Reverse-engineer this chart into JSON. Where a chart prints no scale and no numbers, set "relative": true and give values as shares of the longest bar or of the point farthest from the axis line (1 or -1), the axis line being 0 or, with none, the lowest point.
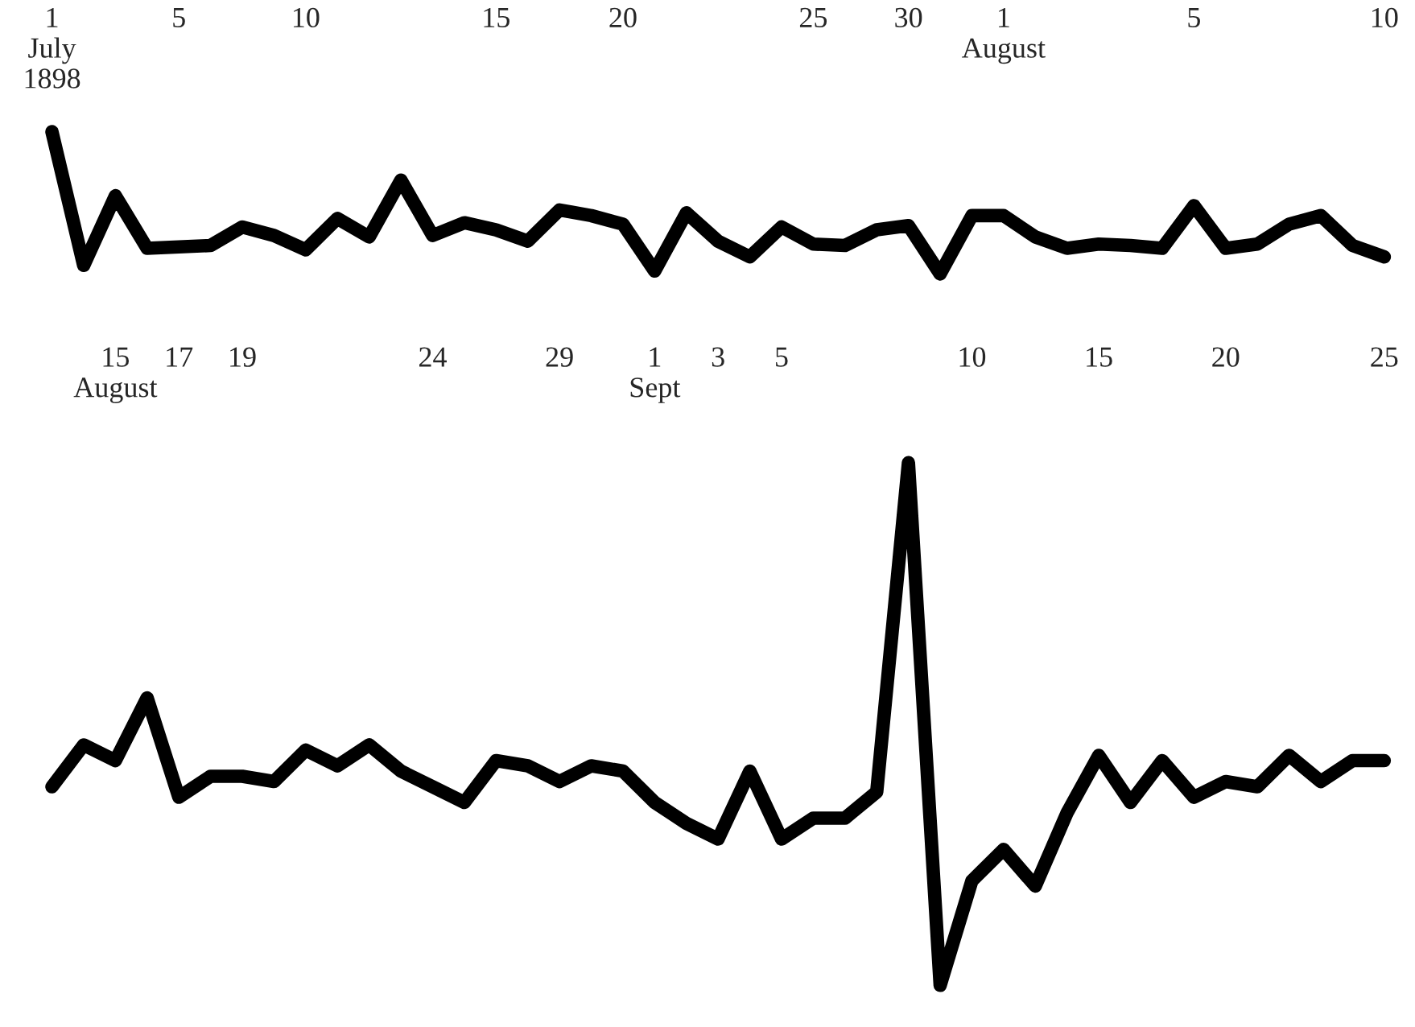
{
  "chart_data": [
    {
      "type": "line",
      "relative": true,
      "grid": false,
      "marker": "none",
      "line_style": "solid",
      "categories": [
        "1\nJuly\n1898",
        null,
        null,
        null,
        "5",
        null,
        null,
        null,
        "10",
        null,
        null,
        null,
        null,
        null,
        "15",
        null,
        null,
        null,
        "20",
        null,
        null,
        null,
        null,
        null,
        "25",
        null,
        null,
        "30",
        null,
        null,
        "1\nAugust",
        null,
        null,
        null,
        null,
        null,
        "5",
        null,
        null,
        null,
        null,
        null,
        "10"
      ],
      "series": [
        {
          "color": "#000000",
          "values": [
            1.0,
            0.06,
            0.55,
            0.18,
            0.19,
            0.2,
            0.33,
            0.27,
            0.17,
            0.39,
            0.26,
            0.66,
            0.27,
            0.36,
            0.31,
            0.23,
            0.45,
            0.41,
            0.35,
            0.02,
            0.43,
            0.23,
            0.12,
            0.33,
            0.21,
            0.2,
            0.31,
            0.34,
            0.0,
            0.41,
            0.41,
            0.26,
            0.18,
            0.21,
            0.2,
            0.18,
            0.48,
            0.18,
            0.21,
            0.35,
            0.41,
            0.2,
            0.12
          ]
        }
      ]
    },
    {
      "type": "line",
      "relative": true,
      "grid": false,
      "marker": "none",
      "line_style": "solid",
      "categories": [
        null,
        null,
        "15\nAugust",
        null,
        "17",
        null,
        "19",
        null,
        null,
        null,
        null,
        null,
        "24",
        null,
        null,
        null,
        "29",
        null,
        null,
        "1\nSept",
        null,
        "3",
        null,
        "5",
        null,
        null,
        null,
        null,
        null,
        "10",
        null,
        null,
        null,
        "15",
        null,
        null,
        null,
        "20",
        null,
        null,
        null,
        null,
        "25"
      ],
      "series": [
        {
          "color": "#000000",
          "values": [
            0.38,
            0.46,
            0.43,
            0.55,
            0.36,
            0.4,
            0.4,
            0.39,
            0.45,
            0.42,
            0.46,
            0.41,
            0.38,
            0.35,
            0.43,
            0.42,
            0.39,
            0.42,
            0.41,
            0.35,
            0.31,
            0.28,
            0.41,
            0.28,
            0.32,
            0.32,
            0.37,
            1.0,
            0.0,
            0.2,
            0.26,
            0.19,
            0.33,
            0.44,
            0.35,
            0.43,
            0.36,
            0.39,
            0.38,
            0.44,
            0.39,
            0.43,
            0.43
          ]
        }
      ]
    }
  ]
}
